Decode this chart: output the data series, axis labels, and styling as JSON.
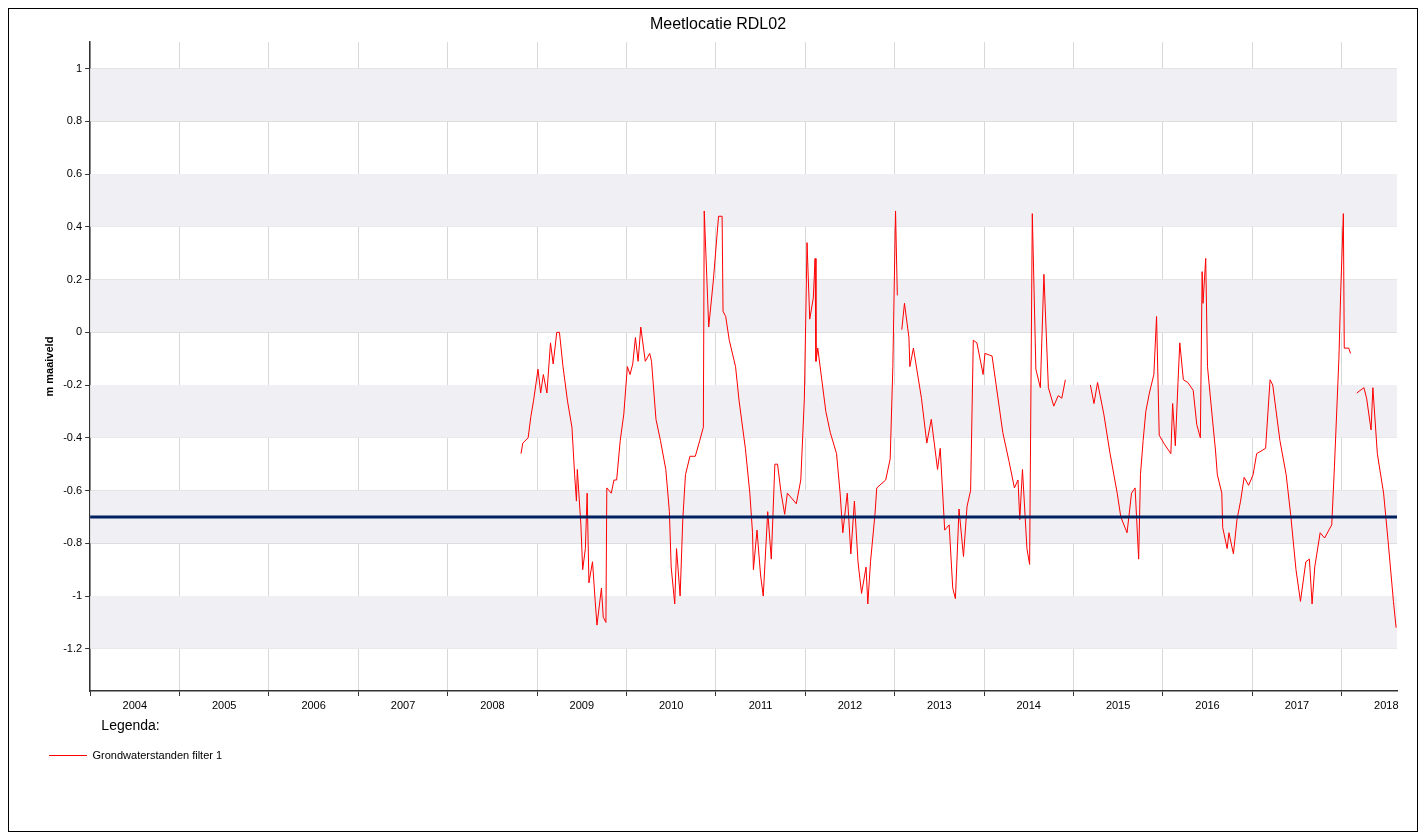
{
  "chart_data": {
    "type": "line",
    "title": "Meetlocatie RDL02",
    "ylabel": "m maaiveld",
    "legend_title": "Legenda:",
    "legend": "bottom left",
    "grid": true,
    "xlim": [
      2004,
      2018.62
    ],
    "ylim": [
      -1.36,
      1.1
    ],
    "xticks": [
      {
        "value": 2004,
        "label": null
      },
      {
        "value": 2004.5,
        "label": "2004"
      },
      {
        "value": 2005,
        "label": null
      },
      {
        "value": 2005.5,
        "label": "2005"
      },
      {
        "value": 2006,
        "label": null
      },
      {
        "value": 2006.5,
        "label": "2006"
      },
      {
        "value": 2007,
        "label": null
      },
      {
        "value": 2007.5,
        "label": "2007"
      },
      {
        "value": 2008,
        "label": null
      },
      {
        "value": 2008.5,
        "label": "2008"
      },
      {
        "value": 2009,
        "label": null
      },
      {
        "value": 2009.5,
        "label": "2009"
      },
      {
        "value": 2010,
        "label": null
      },
      {
        "value": 2010.5,
        "label": "2010"
      },
      {
        "value": 2011,
        "label": null
      },
      {
        "value": 2011.5,
        "label": "2011"
      },
      {
        "value": 2012,
        "label": null
      },
      {
        "value": 2012.5,
        "label": "2012"
      },
      {
        "value": 2013,
        "label": null
      },
      {
        "value": 2013.5,
        "label": "2013"
      },
      {
        "value": 2014,
        "label": null
      },
      {
        "value": 2014.5,
        "label": "2014"
      },
      {
        "value": 2015,
        "label": null
      },
      {
        "value": 2015.5,
        "label": "2015"
      },
      {
        "value": 2016,
        "label": null
      },
      {
        "value": 2016.5,
        "label": "2016"
      },
      {
        "value": 2017,
        "label": null
      },
      {
        "value": 2017.5,
        "label": "2017"
      },
      {
        "value": 2018,
        "label": null
      },
      {
        "value": 2018.5,
        "label": "2018"
      }
    ],
    "yticks": [
      -1.2,
      -1,
      -0.8,
      -0.6,
      -0.4,
      -0.2,
      0,
      0.2,
      0.4,
      0.6,
      0.8,
      1
    ],
    "ref_lines": [
      {
        "axis": "y",
        "value": -0.7,
        "color": "#002060"
      }
    ],
    "series": [
      {
        "name": "Grondwaterstanden filter 1",
        "color": "#ff0000",
        "x": [
          2008.82,
          2008.84,
          2008.9,
          2008.93,
          2008.96,
          2009.01,
          2009.04,
          2009.07,
          2009.11,
          2009.15,
          2009.18,
          2009.22,
          2009.25,
          2009.29,
          2009.34,
          2009.39,
          2009.42,
          2009.44,
          2009.45,
          2009.49,
          2009.51,
          2009.54,
          2009.56,
          2009.58,
          2009.62,
          2009.65,
          2009.67,
          2009.72,
          2009.74,
          2009.77,
          2009.78,
          2009.83,
          2009.86,
          2009.89,
          2009.93,
          2009.97,
          2010.01,
          2010.04,
          2010.07,
          2010.1,
          2010.13,
          2010.16,
          2010.21,
          2010.26,
          2010.28,
          2010.33,
          2010.38,
          2010.44,
          2010.48,
          2010.5,
          2010.54,
          2010.56,
          2010.6,
          2010.63,
          2010.66,
          2010.71,
          2010.77,
          2010.82,
          2010.86,
          2010.87,
          2010.92,
          2010.97,
          2011.03,
          2011.07,
          2011.08,
          2011.11,
          2011.15,
          2011.22,
          2011.26,
          2011.33,
          2011.38,
          2011.41,
          2011.42,
          2011.46,
          2011.5,
          2011.53,
          2011.58,
          2011.62,
          2011.66,
          2011.69,
          2011.73,
          2011.77,
          2011.8,
          2011.9,
          2011.95,
          2011.99,
          2012.02,
          2012.05,
          2012.09,
          2012.11,
          2012.12,
          2012.14,
          2012.23,
          2012.28,
          2012.35,
          2012.39,
          2012.42,
          2012.47,
          2012.51,
          2012.55,
          2012.59,
          2012.63,
          2012.68,
          2012.7,
          2012.73,
          2012.78,
          2012.8,
          2012.9,
          2012.95,
          2012.98,
          2013.01,
          2013.03,
          2013.05,
          2013.08,
          2013.11,
          2013.16,
          2013.17,
          2013.21,
          2013.3,
          2013.36,
          2013.41,
          2013.48,
          2013.51,
          2013.56,
          2013.61,
          2013.65,
          2013.68,
          2013.72,
          2013.77,
          2013.81,
          2013.85,
          2013.88,
          2013.92,
          2013.99,
          2014.01,
          2014.09,
          2014.21,
          2014.28,
          2014.34,
          2014.38,
          2014.4,
          2014.43,
          2014.46,
          2014.48,
          2014.51,
          2014.54,
          2014.58,
          2014.63,
          2014.67,
          2014.72,
          2014.78,
          2014.83,
          2014.87,
          2014.91,
          2015.05,
          2015.19,
          2015.23,
          2015.27,
          2015.34,
          2015.41,
          2015.49,
          2015.53,
          2015.6,
          2015.65,
          2015.69,
          2015.73,
          2015.75,
          2015.78,
          2015.81,
          2015.85,
          2015.9,
          2015.93,
          2015.96,
          2016.01,
          2016.09,
          2016.11,
          2016.14,
          2016.17,
          2016.19,
          2016.23,
          2016.28,
          2016.34,
          2016.38,
          2016.42,
          2016.44,
          2016.45,
          2016.48,
          2016.5,
          2016.55,
          2016.59,
          2016.61,
          2016.66,
          2016.67,
          2016.72,
          2016.74,
          2016.79,
          2016.83,
          2016.87,
          2016.91,
          2016.96,
          2017.01,
          2017.05,
          2017.15,
          2017.2,
          2017.23,
          2017.31,
          2017.38,
          2017.43,
          2017.49,
          2017.54,
          2017.6,
          2017.64,
          2017.67,
          2017.7,
          2017.76,
          2017.81,
          2017.89,
          2017.92,
          2017.97,
          2017.99,
          2018.02,
          2018.03,
          2018.08,
          2018.1,
          2018.13,
          2018.17,
          2018.25,
          2018.28,
          2018.33,
          2018.35,
          2018.4,
          2018.47,
          2018.52,
          2018.58,
          2018.61
        ],
        "values": [
          -0.46,
          -0.42,
          -0.4,
          -0.32,
          -0.26,
          -0.14,
          -0.23,
          -0.16,
          -0.23,
          -0.04,
          -0.12,
          0,
          0,
          -0.13,
          -0.26,
          -0.36,
          -0.54,
          -0.64,
          -0.52,
          -0.73,
          -0.9,
          -0.82,
          -0.61,
          -0.95,
          -0.87,
          -1.02,
          -1.11,
          -0.97,
          -1.08,
          -1.1,
          -0.59,
          -0.61,
          -0.56,
          -0.56,
          -0.41,
          -0.31,
          -0.13,
          -0.16,
          -0.12,
          -0.02,
          -0.11,
          0.02,
          -0.11,
          -0.08,
          -0.11,
          -0.33,
          -0.41,
          -0.52,
          -0.68,
          -0.89,
          -1.03,
          -0.82,
          -1,
          -0.71,
          -0.54,
          -0.47,
          -0.47,
          -0.41,
          -0.36,
          0.46,
          0.02,
          0.19,
          0.44,
          0.44,
          0.08,
          0.06,
          -0.03,
          -0.13,
          -0.26,
          -0.44,
          -0.61,
          -0.76,
          -0.9,
          -0.75,
          -0.92,
          -1,
          -0.68,
          -0.86,
          -0.5,
          -0.5,
          -0.61,
          -0.69,
          -0.61,
          -0.65,
          -0.56,
          -0.25,
          0.34,
          0.05,
          0.13,
          0.28,
          -0.11,
          -0.06,
          -0.3,
          -0.38,
          -0.46,
          -0.61,
          -0.76,
          -0.61,
          -0.84,
          -0.64,
          -0.87,
          -0.99,
          -0.89,
          -1.03,
          -0.87,
          -0.69,
          -0.59,
          -0.56,
          -0.48,
          -0.13,
          0.46,
          0.14,
          null,
          0.01,
          0.11,
          -0.02,
          -0.13,
          -0.06,
          -0.25,
          -0.42,
          -0.33,
          -0.52,
          -0.44,
          -0.75,
          -0.73,
          -0.97,
          -1.01,
          -0.67,
          -0.85,
          -0.66,
          -0.6,
          -0.03,
          -0.04,
          -0.16,
          -0.08,
          -0.09,
          -0.38,
          -0.49,
          -0.59,
          -0.56,
          -0.71,
          -0.52,
          -0.7,
          -0.82,
          -0.88,
          0.45,
          -0.14,
          -0.21,
          0.22,
          -0.21,
          -0.28,
          -0.24,
          -0.25,
          -0.18,
          null,
          -0.2,
          -0.27,
          -0.19,
          -0.31,
          -0.46,
          -0.61,
          -0.7,
          -0.76,
          -0.61,
          -0.59,
          -0.86,
          -0.54,
          -0.41,
          -0.3,
          -0.23,
          -0.16,
          0.06,
          -0.39,
          -0.42,
          -0.46,
          -0.27,
          -0.43,
          -0.19,
          -0.04,
          -0.18,
          -0.19,
          -0.22,
          -0.35,
          -0.4,
          0.23,
          0.11,
          0.28,
          -0.13,
          -0.31,
          -0.45,
          -0.54,
          -0.61,
          -0.74,
          -0.82,
          -0.76,
          -0.84,
          -0.71,
          -0.64,
          -0.55,
          -0.58,
          -0.54,
          -0.46,
          -0.44,
          -0.18,
          -0.2,
          -0.41,
          -0.54,
          -0.69,
          -0.9,
          -1.02,
          -0.87,
          -0.86,
          -1.03,
          -0.89,
          -0.76,
          -0.78,
          -0.73,
          -0.51,
          -0.1,
          0.15,
          0.45,
          -0.06,
          -0.06,
          -0.08,
          null,
          -0.23,
          -0.21,
          -0.25,
          -0.37,
          -0.21,
          -0.46,
          -0.61,
          -0.79,
          -1.02,
          -1.12
        ]
      }
    ]
  }
}
